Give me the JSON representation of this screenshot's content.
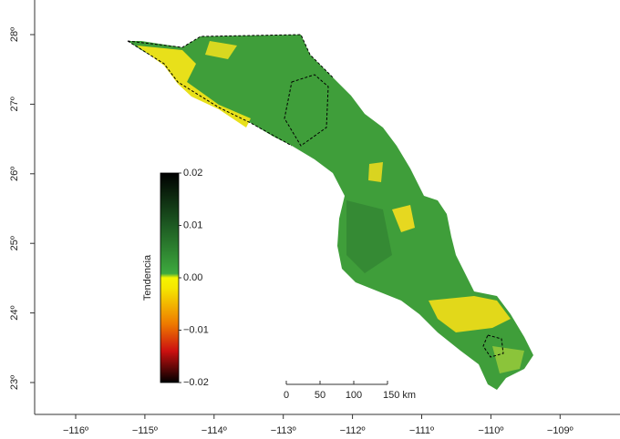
{
  "map": {
    "x_ticks": [
      {
        "value": -116,
        "label": "−116º"
      },
      {
        "value": -115,
        "label": "−115º"
      },
      {
        "value": -114,
        "label": "−114º"
      },
      {
        "value": -113,
        "label": "−113º"
      },
      {
        "value": -112,
        "label": "−112º"
      },
      {
        "value": -111,
        "label": "−111º"
      },
      {
        "value": -110,
        "label": "−110º"
      },
      {
        "value": -109,
        "label": "−109º"
      }
    ],
    "y_ticks": [
      {
        "value": 23,
        "label": "23º"
      },
      {
        "value": 24,
        "label": "24º"
      },
      {
        "value": 25,
        "label": "25º"
      },
      {
        "value": 26,
        "label": "26º"
      },
      {
        "value": 27,
        "label": "27º"
      },
      {
        "value": 28,
        "label": "28º"
      }
    ],
    "colorbar": {
      "title": "Tendencia",
      "ticks": [
        {
          "value": 0.02,
          "label": "0.02"
        },
        {
          "value": 0.01,
          "label": "0.01"
        },
        {
          "value": 0,
          "label": "0.00"
        },
        {
          "value": -0.01,
          "label": "−0.01"
        },
        {
          "value": -0.02,
          "label": "−0.02"
        }
      ]
    },
    "scale_bar": {
      "ticks": [
        0,
        50,
        100,
        {
          "value": 150,
          "label": "150 km"
        }
      ]
    }
  }
}
